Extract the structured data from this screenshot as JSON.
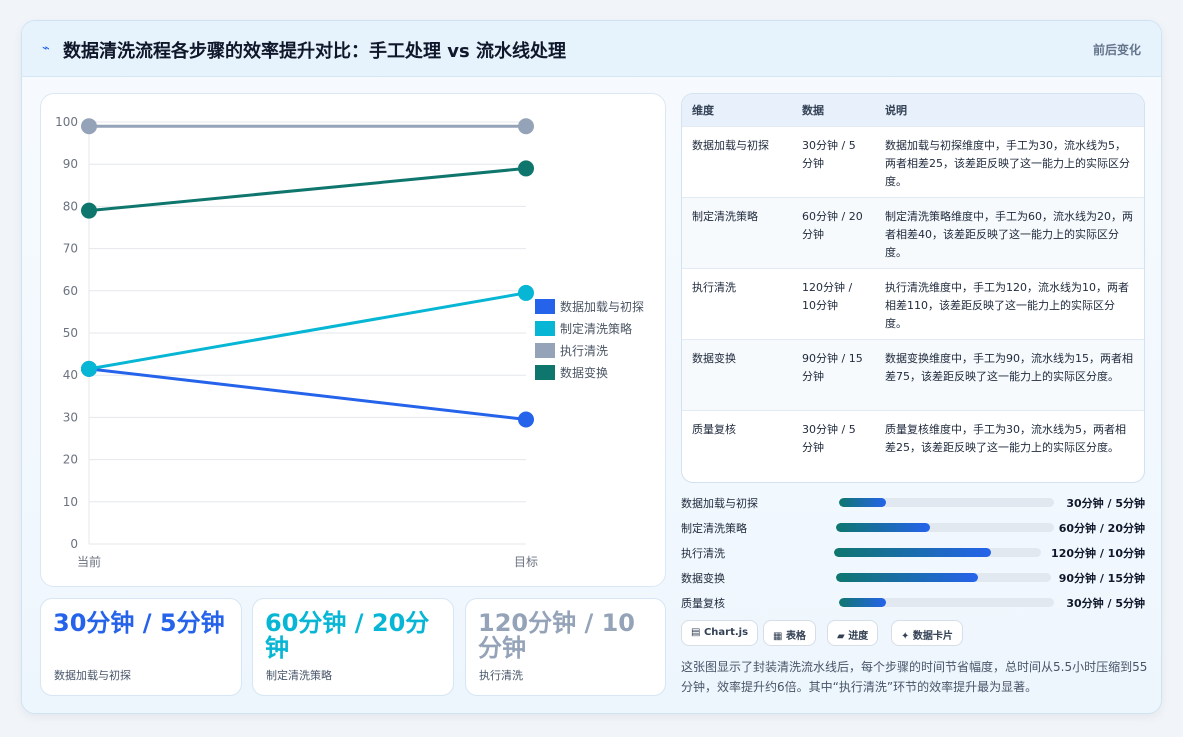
{
  "header": {
    "icon": "lightning-icon",
    "title": "数据清洗流程各步骤的效率提升对比：手工处理 vs 流水线处理",
    "badge": "前后变化"
  },
  "chart_data": {
    "type": "line",
    "x": [
      "当前",
      "目标"
    ],
    "series": [
      {
        "name": "数据加载与初探",
        "color": "#2563eb",
        "values": [
          41.5,
          29.5
        ]
      },
      {
        "name": "制定清洗策略",
        "color": "#06b6d4",
        "values": [
          41.5,
          59.5
        ]
      },
      {
        "name": "执行清洗",
        "color": "#94a3b8",
        "values": [
          99,
          99
        ]
      },
      {
        "name": "数据变换",
        "color": "#0f766e",
        "values": [
          79,
          89
        ]
      }
    ],
    "ylim": [
      0,
      100
    ],
    "yticks": [
      0,
      10,
      20,
      30,
      40,
      50,
      60,
      70,
      80,
      90,
      100
    ],
    "grid": true,
    "legend": "right"
  },
  "stats": [
    {
      "value": "30分钟 / 5分钟",
      "label": "数据加载与初探",
      "color": "#2563eb"
    },
    {
      "value": "60分钟 / 20分钟",
      "label": "制定清洗策略",
      "color": "#06b6d4"
    },
    {
      "value": "120分钟 / 10分钟",
      "label": "执行清洗",
      "color": "#94a3b8"
    }
  ],
  "table": {
    "headers": [
      "维度",
      "数据",
      "说明"
    ],
    "rows": [
      [
        "数据加载与初探",
        "30分钟 / 5分钟",
        "数据加载与初探维度中，手工为30，流水线为5，两者相差25，该差距反映了这一能力上的实际区分度。"
      ],
      [
        "制定清洗策略",
        "60分钟 / 20分钟",
        "制定清洗策略维度中，手工为60，流水线为20，两者相差40，该差距反映了这一能力上的实际区分度。"
      ],
      [
        "执行清洗",
        "120分钟 / 10分钟",
        "执行清洗维度中，手工为120，流水线为10，两者相差110，该差距反映了这一能力上的实际区分度。"
      ],
      [
        "数据变换",
        "90分钟 / 15分钟",
        "数据变换维度中，手工为90，流水线为15，两者相差75，该差距反映了这一能力上的实际区分度。"
      ],
      [
        "质量复核",
        "30分钟 / 5分钟",
        "质量复核维度中，手工为30，流水线为5，两者相差25，该差距反映了这一能力上的实际区分度。"
      ]
    ]
  },
  "progress": [
    {
      "label": "数据加载与初探",
      "value": "30分钟 / 5分钟",
      "fraction": 0.22
    },
    {
      "label": "制定清洗策略",
      "value": "60分钟 / 20分钟",
      "fraction": 0.43
    },
    {
      "label": "执行清洗",
      "value": "120分钟 / 10分钟",
      "fraction": 0.76
    },
    {
      "label": "数据变换",
      "value": "90分钟 / 15分钟",
      "fraction": 0.66
    },
    {
      "label": "质量复核",
      "value": "30分钟 / 5分钟",
      "fraction": 0.22
    }
  ],
  "chips": [
    {
      "icon": "chart-icon",
      "glyph": "▤",
      "label": "Chart.js"
    },
    {
      "icon": "table-icon",
      "glyph": "▦",
      "label": "表格"
    },
    {
      "icon": "progress-icon",
      "glyph": "▰",
      "label": "进度"
    },
    {
      "icon": "sparkle-icon",
      "glyph": "✦",
      "label": "数据卡片"
    }
  ],
  "note": "这张图显示了封装清洗流水线后，每个步骤的时间节省幅度，总时间从5.5小时压缩到55分钟，效率提升约6倍。其中“执行清洗”环节的效率提升最为显著。"
}
